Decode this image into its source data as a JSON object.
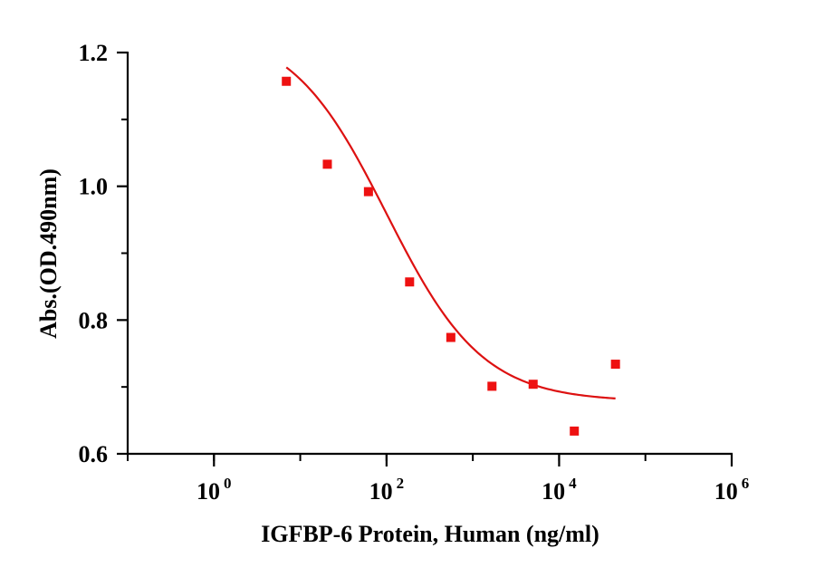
{
  "chart_data": {
    "type": "scatter",
    "xlabel": "IGFBP-6 Protein, Human (ng/ml)",
    "ylabel": "Abs.(OD.490nm)",
    "x_scale": "log10",
    "xlim": [
      0.1,
      1000000
    ],
    "ylim": [
      0.6,
      1.2
    ],
    "x_ticks": [
      {
        "base": "10",
        "exp": "0",
        "value": 1
      },
      {
        "base": "10",
        "exp": "2",
        "value": 100
      },
      {
        "base": "10",
        "exp": "4",
        "value": 10000
      },
      {
        "base": "10",
        "exp": "6",
        "value": 1000000
      }
    ],
    "y_ticks": [
      "0.6",
      "0.8",
      "1.0",
      "1.2"
    ],
    "y_tick_values": [
      0.6,
      0.8,
      1.0,
      1.2
    ],
    "points": {
      "color": "#ee1111",
      "x": [
        6.9,
        20.6,
        61.7,
        185,
        556,
        1667,
        5000,
        15000,
        45000
      ],
      "y": [
        1.157,
        1.033,
        0.992,
        0.857,
        0.774,
        0.701,
        0.704,
        0.634,
        0.734
      ]
    },
    "fit_curve": {
      "color": "#dd1111",
      "x_range": [
        6.9,
        45000
      ],
      "bottom": 0.678,
      "top": 1.24,
      "log_ec50": 2.0,
      "hill": 0.78
    }
  }
}
